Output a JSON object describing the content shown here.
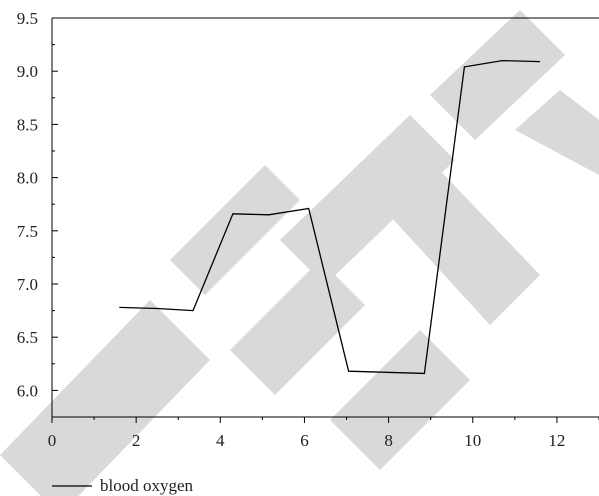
{
  "watermark": {
    "text": "RETRACTED",
    "color": "#d4d4d4"
  },
  "chart_data": {
    "type": "line",
    "title": "",
    "xlabel": "",
    "ylabel": "",
    "xlim": [
      0,
      13
    ],
    "ylim": [
      5.75,
      9.5
    ],
    "x_ticks": [
      0,
      2,
      4,
      6,
      8,
      10,
      12
    ],
    "x_tick_labels": [
      "0",
      "2",
      "4",
      "6",
      "8",
      "10",
      "12"
    ],
    "y_ticks": [
      6.0,
      6.5,
      7.0,
      7.5,
      8.0,
      8.5,
      9.0,
      9.5
    ],
    "y_tick_labels": [
      "6.0",
      "6.5",
      "7.0",
      "7.5",
      "8.0",
      "8.5",
      "9.0",
      "9.5"
    ],
    "grid": false,
    "legend_position": "bottom-left",
    "series": [
      {
        "name": "blood oxygen",
        "color": "#000000",
        "x": [
          1.6,
          2.5,
          3.35,
          4.3,
          5.15,
          6.1,
          7.05,
          7.95,
          8.85,
          9.8,
          10.7,
          11.6
        ],
        "y": [
          6.78,
          6.77,
          6.75,
          7.66,
          7.65,
          7.71,
          6.18,
          6.17,
          6.16,
          9.04,
          9.1,
          9.09
        ]
      }
    ]
  }
}
